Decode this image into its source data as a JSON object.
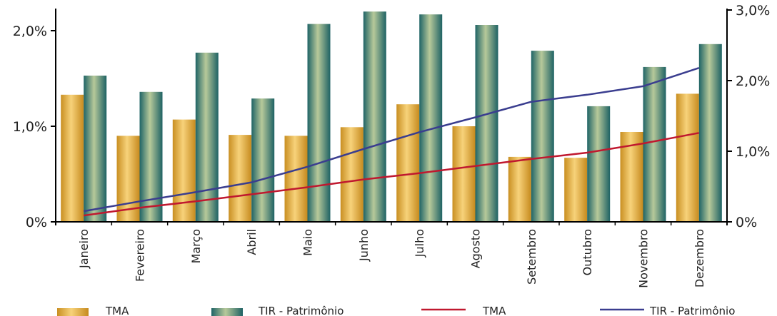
{
  "chart_data": {
    "type": "bar",
    "categories": [
      "Janeiro",
      "Fevereiro",
      "Março",
      "Abril",
      "Maio",
      "Junho",
      "Julho",
      "Agosto",
      "Setembro",
      "Outubro",
      "Novembro",
      "Dezembro"
    ],
    "series": [
      {
        "name": "TMA",
        "kind": "bar",
        "axis": "left",
        "values": [
          1.33,
          0.9,
          1.07,
          0.91,
          0.9,
          0.99,
          1.23,
          1.0,
          0.68,
          0.67,
          0.94,
          1.34
        ]
      },
      {
        "name": "TIR - Patrimônio",
        "kind": "bar",
        "axis": "left",
        "values": [
          1.53,
          1.36,
          1.77,
          1.29,
          2.07,
          2.2,
          2.17,
          2.06,
          1.79,
          1.21,
          1.62,
          1.86
        ]
      },
      {
        "name": "TMA",
        "kind": "line",
        "axis": "right",
        "values": [
          0.09,
          0.2,
          0.29,
          0.39,
          0.49,
          0.6,
          0.69,
          0.79,
          0.89,
          0.98,
          1.11,
          1.26
        ]
      },
      {
        "name": "TIR - Patrimônio",
        "kind": "line",
        "axis": "right",
        "values": [
          0.15,
          0.29,
          0.42,
          0.56,
          0.78,
          1.03,
          1.27,
          1.48,
          1.7,
          1.8,
          1.92,
          2.18
        ]
      }
    ],
    "left_axis": {
      "ticks": [
        {
          "v": 0,
          "label": "0%"
        },
        {
          "v": 1,
          "label": "1,0%"
        },
        {
          "v": 2,
          "label": "2,0%"
        }
      ],
      "range": [
        0,
        2.2
      ]
    },
    "right_axis": {
      "ticks": [
        {
          "v": 0,
          "label": "0%"
        },
        {
          "v": 1,
          "label": "1,0%"
        },
        {
          "v": 2,
          "label": "2,0%"
        },
        {
          "v": 3,
          "label": "3,0%"
        }
      ],
      "range": [
        0,
        3.0
      ]
    },
    "grid": false,
    "legend": "bottom",
    "colors": {
      "tma_bar": "#e2ad3a",
      "tir_bar": "#2f7e80",
      "tma_line": "#c0182f",
      "tir_line": "#3a3d8f"
    }
  }
}
